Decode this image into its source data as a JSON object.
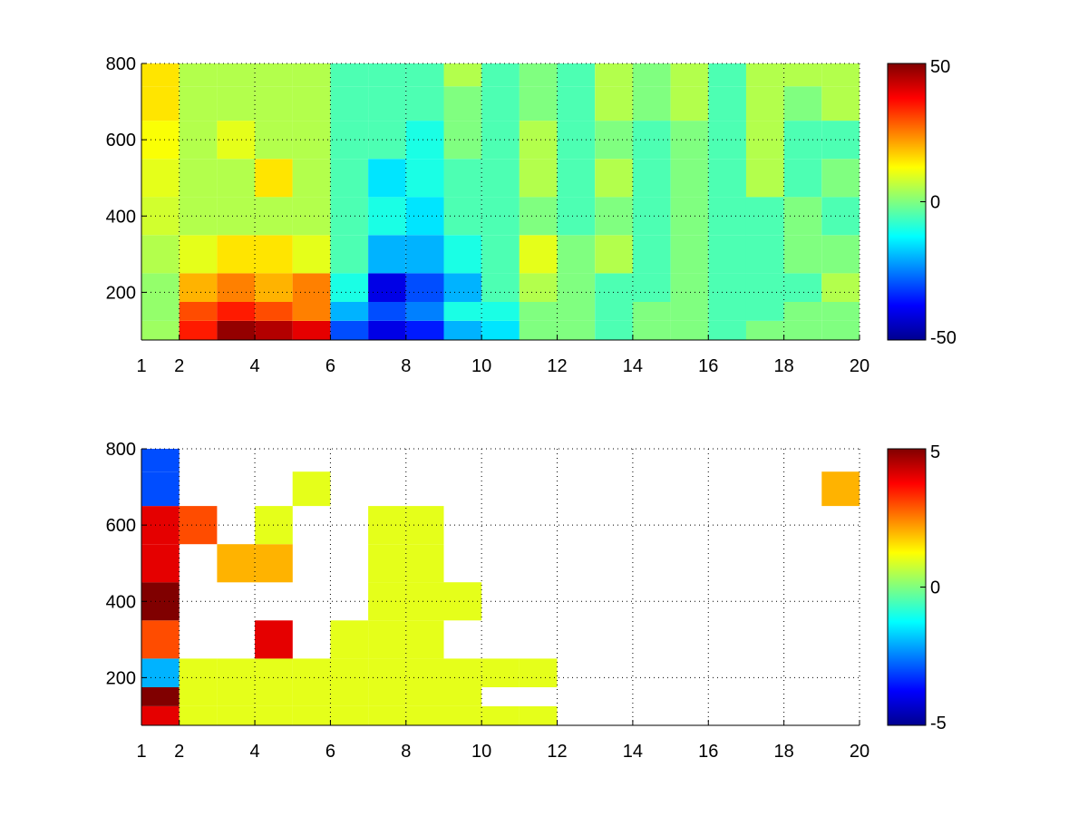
{
  "chart_data": [
    {
      "type": "heatmap",
      "title": "",
      "xlabel": "",
      "ylabel": "",
      "xlim": [
        1,
        20
      ],
      "ylim": [
        75,
        800
      ],
      "xticks": [
        1,
        2,
        4,
        6,
        8,
        10,
        12,
        14,
        16,
        18,
        20
      ],
      "yticks": [
        200,
        400,
        600,
        800
      ],
      "grid": true,
      "colormap": "jet",
      "clim": [
        -50,
        50
      ],
      "colorbar_ticks": [
        -50,
        0,
        50
      ],
      "x_centers": [
        1.5,
        2.5,
        3.5,
        4.5,
        5.5,
        6.5,
        7.5,
        8.5,
        9.5,
        10.5,
        11.5,
        12.5,
        13.5,
        14.5,
        15.5,
        16.5,
        17.5,
        18.5,
        19.5
      ],
      "y_centers": [
        100,
        150,
        200,
        300,
        400,
        500,
        600,
        700,
        780
      ],
      "values": [
        [
          3,
          35,
          48,
          45,
          40,
          -30,
          -40,
          -35,
          -20,
          -15,
          0,
          0,
          -5,
          0,
          0,
          -5,
          0,
          0,
          0
        ],
        [
          2,
          30,
          35,
          30,
          25,
          -20,
          -30,
          -25,
          -10,
          -10,
          0,
          0,
          -5,
          0,
          0,
          -5,
          -5,
          0,
          0
        ],
        [
          2,
          20,
          25,
          20,
          25,
          -10,
          -40,
          -30,
          -20,
          -5,
          5,
          0,
          -5,
          -5,
          0,
          -5,
          -5,
          -5,
          5
        ],
        [
          5,
          10,
          15,
          15,
          10,
          -5,
          -20,
          -20,
          -10,
          -5,
          10,
          0,
          5,
          -5,
          0,
          -5,
          -5,
          0,
          0
        ],
        [
          8,
          5,
          5,
          5,
          5,
          -5,
          -10,
          -15,
          -5,
          -5,
          0,
          -5,
          0,
          -5,
          0,
          -5,
          -5,
          0,
          -5
        ],
        [
          10,
          5,
          5,
          15,
          5,
          -5,
          -15,
          -10,
          -5,
          -5,
          5,
          -5,
          5,
          -5,
          0,
          -5,
          5,
          -5,
          0
        ],
        [
          12,
          5,
          10,
          5,
          5,
          -5,
          -5,
          -10,
          0,
          -5,
          5,
          -5,
          0,
          -5,
          0,
          -5,
          5,
          -5,
          -5
        ],
        [
          15,
          5,
          5,
          5,
          5,
          -5,
          -5,
          -5,
          0,
          -5,
          0,
          -5,
          5,
          0,
          5,
          -5,
          5,
          0,
          5
        ],
        [
          15,
          5,
          5,
          5,
          5,
          -5,
          -5,
          -5,
          5,
          -5,
          0,
          -5,
          5,
          0,
          5,
          -5,
          5,
          5,
          5
        ]
      ]
    },
    {
      "type": "heatmap",
      "title": "",
      "xlabel": "",
      "ylabel": "",
      "xlim": [
        1,
        20
      ],
      "ylim": [
        75,
        800
      ],
      "xticks": [
        1,
        2,
        4,
        6,
        8,
        10,
        12,
        14,
        16,
        18,
        20
      ],
      "yticks": [
        200,
        400,
        600,
        800
      ],
      "grid": true,
      "colormap": "jet",
      "clim": [
        -5,
        5
      ],
      "colorbar_ticks": [
        -5,
        0,
        5
      ],
      "x_centers": [
        1.5,
        2.5,
        3.5,
        4.5,
        5.5,
        6.5,
        7.5,
        8.5,
        9.5,
        10.5,
        11.5,
        12.5,
        13.5,
        14.5,
        15.5,
        16.5,
        17.5,
        18.5,
        19.5
      ],
      "y_centers": [
        100,
        150,
        200,
        300,
        400,
        500,
        600,
        700,
        780
      ],
      "values": [
        [
          4,
          1,
          1,
          1,
          1,
          1,
          1,
          1,
          1,
          1,
          1,
          null,
          null,
          null,
          null,
          null,
          null,
          null,
          null
        ],
        [
          5,
          1,
          1,
          1,
          1,
          1,
          1,
          1,
          1,
          null,
          null,
          null,
          null,
          null,
          null,
          null,
          null,
          null,
          null
        ],
        [
          -2,
          1,
          1,
          1,
          1,
          1,
          1,
          1,
          1,
          1,
          1,
          null,
          null,
          null,
          null,
          null,
          null,
          null,
          null
        ],
        [
          3,
          null,
          null,
          4,
          null,
          1,
          1,
          1,
          null,
          null,
          null,
          null,
          null,
          null,
          null,
          null,
          null,
          null,
          null
        ],
        [
          5,
          null,
          null,
          null,
          null,
          null,
          1,
          1,
          1,
          null,
          null,
          null,
          null,
          null,
          null,
          null,
          null,
          null,
          null
        ],
        [
          4,
          null,
          2,
          2,
          null,
          null,
          1,
          1,
          null,
          null,
          null,
          null,
          null,
          null,
          null,
          null,
          null,
          null,
          null
        ],
        [
          4,
          3,
          null,
          1,
          null,
          null,
          1,
          1,
          null,
          null,
          null,
          null,
          null,
          null,
          null,
          null,
          null,
          null,
          null
        ],
        [
          -3,
          null,
          null,
          null,
          1,
          null,
          null,
          null,
          null,
          null,
          null,
          null,
          null,
          null,
          null,
          null,
          null,
          null,
          2
        ],
        [
          -3,
          null,
          null,
          null,
          null,
          null,
          null,
          null,
          null,
          null,
          null,
          null,
          null,
          null,
          null,
          null,
          null,
          null,
          null
        ]
      ]
    }
  ]
}
